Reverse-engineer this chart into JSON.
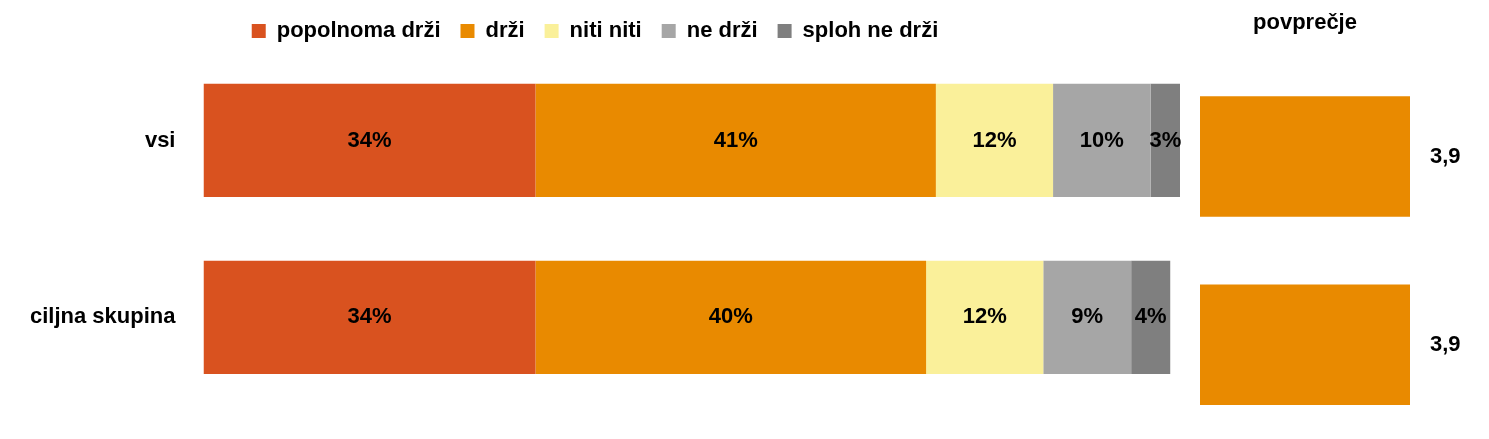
{
  "chart_data": [
    {
      "type": "bar",
      "orientation": "horizontal",
      "stacked": true,
      "categories": [
        "vsi",
        "ciljna skupina"
      ],
      "legend": "top",
      "tick_labels": "y",
      "series": [
        {
          "name": "popolnoma drži",
          "color": "#d9521f",
          "values": [
            34,
            34
          ],
          "value_labels": [
            "34%",
            "34%"
          ]
        },
        {
          "name": "drži",
          "color": "#e98a00",
          "values": [
            41,
            40
          ],
          "value_labels": [
            "41%",
            "40%"
          ]
        },
        {
          "name": "niti niti",
          "color": "#faf09a",
          "values": [
            12,
            12
          ],
          "value_labels": [
            "12%",
            "12%"
          ]
        },
        {
          "name": "ne drži",
          "color": "#a6a6a6",
          "values": [
            10,
            9
          ],
          "value_labels": [
            "10%",
            "9%"
          ]
        },
        {
          "name": "sploh ne drži",
          "color": "#7f7f7f",
          "values": [
            3,
            4
          ],
          "value_labels": [
            "3%",
            "4%"
          ]
        }
      ]
    },
    {
      "type": "bar",
      "orientation": "horizontal",
      "title": "povprečje",
      "categories": [
        null,
        null
      ],
      "tick_labels": false,
      "series": [
        {
          "color": "#e98a00",
          "values": [
            3.9,
            3.9
          ],
          "value_labels": [
            "3,9",
            "3,9"
          ]
        }
      ]
    }
  ]
}
